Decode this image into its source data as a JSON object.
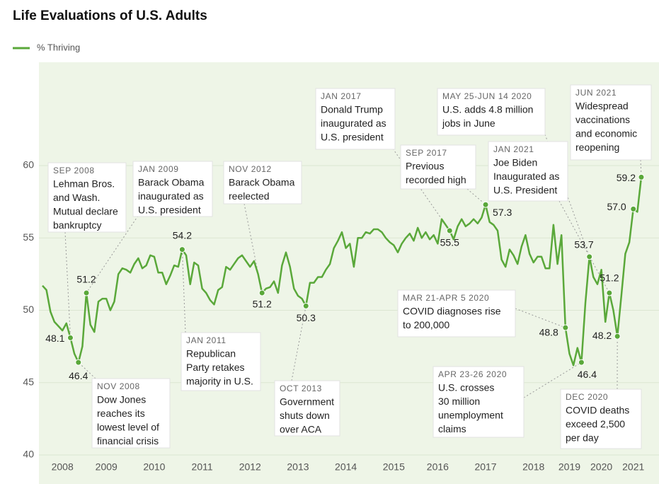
{
  "chart_data": {
    "type": "line",
    "title": "Life Evaluations of U.S. Adults",
    "categories": [
      null,
      null,
      null,
      null,
      null,
      "2008",
      null,
      null,
      null,
      null,
      null,
      null,
      null,
      null,
      null,
      null,
      "2009",
      null,
      null,
      null,
      null,
      null,
      null,
      null,
      null,
      null,
      null,
      null,
      "2010",
      null,
      null,
      null,
      null,
      null,
      null,
      null,
      null,
      null,
      null,
      null,
      "2011",
      null,
      null,
      null,
      null,
      null,
      null,
      null,
      null,
      null,
      null,
      null,
      "2012",
      null,
      null,
      null,
      null,
      null,
      null,
      null,
      null,
      null,
      null,
      null,
      "2013",
      null,
      null,
      null,
      null,
      null,
      null,
      null,
      null,
      null,
      null,
      null,
      "2014",
      null,
      null,
      null,
      null,
      null,
      null,
      null,
      null,
      null,
      null,
      null,
      "2015",
      null,
      null,
      null,
      null,
      null,
      null,
      null,
      null,
      null,
      null,
      "2016",
      null,
      null,
      null,
      null,
      null,
      null,
      null,
      null,
      null,
      null,
      null,
      "2017",
      null,
      null,
      null,
      null,
      null,
      null,
      null,
      null,
      null,
      null,
      null,
      "2018",
      null,
      null,
      null,
      null,
      null,
      null,
      null,
      null,
      "2019",
      null,
      null,
      null,
      null,
      null,
      null,
      null,
      "2020",
      null,
      null,
      null,
      null,
      null,
      null,
      null,
      "2021",
      null,
      null
    ],
    "series": [
      {
        "name": "% Thriving",
        "color": "#5aa83a",
        "values": [
          51.7,
          51.4,
          49.9,
          49.2,
          48.9,
          48.6,
          49.1,
          48.1,
          47,
          46.4,
          47.5,
          51.2,
          49,
          48.5,
          50.6,
          50.8,
          50.8,
          50,
          50.6,
          52.5,
          52.9,
          52.8,
          52.6,
          53.2,
          53.6,
          52.9,
          53.1,
          53.8,
          53.7,
          52.6,
          52.6,
          51.8,
          52.4,
          53.1,
          53,
          54.2,
          53.8,
          51.8,
          53.3,
          53.1,
          51.5,
          51.2,
          50.7,
          50.4,
          51.4,
          51.6,
          53,
          52.8,
          53.2,
          53.6,
          53.8,
          53.4,
          53,
          53.4,
          52.5,
          51.2,
          51.5,
          51.6,
          52,
          51.2,
          53.1,
          54,
          53,
          51.5,
          51,
          50.8,
          50.3,
          51.9,
          51.9,
          52.3,
          52.3,
          52.8,
          53.2,
          54.3,
          54.8,
          55.4,
          54.3,
          54.6,
          53,
          55,
          55,
          55.4,
          55.3,
          55.6,
          55.6,
          55.4,
          55,
          54.7,
          54.5,
          54,
          54.6,
          55,
          55.3,
          54.8,
          55.7,
          55,
          55.4,
          54.9,
          55.2,
          54.6,
          56.3,
          55.9,
          55.5,
          54.9,
          55.8,
          56.3,
          55.8,
          56,
          56.3,
          56,
          56.4,
          57.3,
          56.1,
          55.9,
          55.5,
          53.5,
          53,
          54.2,
          53.8,
          53.2,
          54.4,
          55.2,
          53.9,
          53.3,
          53.7,
          53.7,
          52.9,
          52.9,
          55.9,
          53.2,
          55.2,
          48.8,
          47,
          46.2,
          47.4,
          46.4,
          50.5,
          53.7,
          52.3,
          51.8,
          52.8,
          49.2,
          51.2,
          50,
          48.2,
          51,
          53.9,
          54.7,
          57,
          56.8,
          59.2
        ],
        "value_labels": [
          null,
          null,
          null,
          null,
          null,
          null,
          null,
          "48.1",
          null,
          "46.4",
          null,
          "51.2",
          null,
          null,
          null,
          null,
          null,
          null,
          null,
          null,
          null,
          null,
          null,
          null,
          null,
          null,
          null,
          null,
          null,
          null,
          null,
          null,
          null,
          null,
          null,
          "54.2",
          null,
          null,
          null,
          null,
          null,
          null,
          null,
          null,
          null,
          null,
          null,
          null,
          null,
          null,
          null,
          null,
          null,
          null,
          null,
          "51.2",
          null,
          null,
          null,
          null,
          null,
          null,
          null,
          null,
          null,
          null,
          "50.3",
          null,
          null,
          null,
          null,
          null,
          null,
          null,
          null,
          null,
          null,
          null,
          null,
          null,
          null,
          null,
          null,
          null,
          null,
          null,
          null,
          null,
          null,
          null,
          null,
          null,
          null,
          null,
          null,
          null,
          null,
          null,
          null,
          null,
          null,
          null,
          "55.5",
          null,
          null,
          null,
          null,
          null,
          null,
          null,
          null,
          "57.3",
          null,
          null,
          null,
          null,
          null,
          null,
          null,
          null,
          null,
          null,
          null,
          null,
          null,
          null,
          null,
          null,
          null,
          null,
          null,
          "48.8",
          null,
          null,
          null,
          "46.4",
          null,
          "53.7",
          null,
          null,
          null,
          null,
          "51.2",
          null,
          "48.2",
          null,
          null,
          null,
          "57.0",
          null,
          "59.2"
        ]
      }
    ],
    "ylim": [
      40,
      67
    ],
    "yticks": [
      40,
      45,
      50,
      55,
      60
    ],
    "grid": true,
    "legend": "top-left",
    "annotations": [
      {
        "date": "SEP 2008",
        "text": [
          "Lehman Bros.",
          "and Wash.",
          "Mutual declare",
          "bankruptcy"
        ]
      },
      {
        "date": "JAN 2009",
        "text": [
          "Barack Obama",
          "inaugurated as",
          "U.S. president"
        ]
      },
      {
        "date": "NOV 2012",
        "text": [
          "Barack Obama",
          "reelected"
        ]
      },
      {
        "date": "JAN 2017",
        "text": [
          "Donald Trump",
          "inaugurated as",
          "U.S. president"
        ]
      },
      {
        "date": "SEP 2017",
        "text": [
          "Previous",
          "recorded high"
        ]
      },
      {
        "date": "MAY 25-JUN 14 2020",
        "text": [
          "U.S. adds 4.8 million",
          "jobs in June"
        ]
      },
      {
        "date": "JAN 2021",
        "text": [
          "Joe Biden",
          "Inaugurated as",
          "U.S. President"
        ]
      },
      {
        "date": "JUN 2021",
        "text": [
          "Widespread",
          "vaccinations",
          "and economic",
          "reopening"
        ]
      },
      {
        "date": "NOV 2008",
        "text": [
          "Dow Jones",
          "reaches its",
          "lowest level of",
          "financial crisis"
        ]
      },
      {
        "date": "JAN 2011",
        "text": [
          "Republican",
          "Party retakes",
          "majority in U.S."
        ]
      },
      {
        "date": "OCT 2013",
        "text": [
          "Government",
          "shuts down",
          "over ACA"
        ]
      },
      {
        "date": "MAR 21-APR 5 2020",
        "text": [
          "COVID diagnoses rise",
          "to 200,000"
        ]
      },
      {
        "date": "APR 23-26 2020",
        "text": [
          "U.S. crosses",
          "30 million",
          "unemployment",
          "claims"
        ]
      },
      {
        "date": "DEC 2020",
        "text": [
          "COVID deaths",
          "exceed 2,500",
          "per day"
        ]
      }
    ]
  }
}
